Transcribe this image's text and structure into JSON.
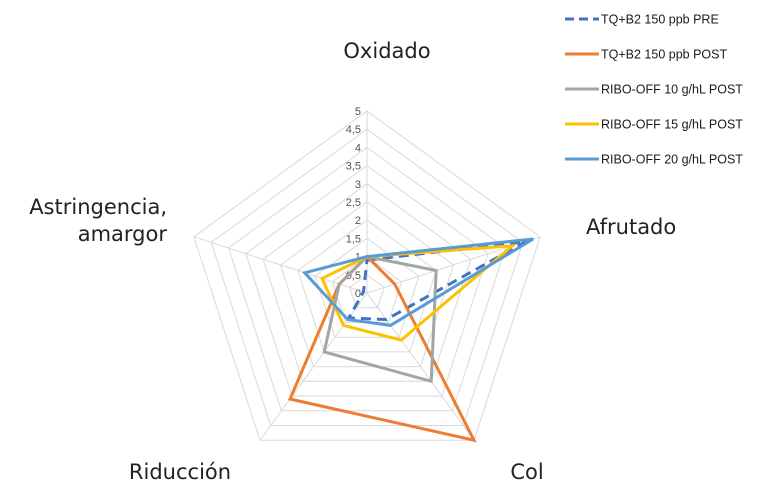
{
  "chart_data": {
    "type": "radar",
    "axes": [
      "Oxidado",
      "Afrutado",
      "Col",
      "Riducción",
      "Astringencia, amargor"
    ],
    "axis_label_lines": [
      [
        "Oxidado"
      ],
      [
        "Afrutado"
      ],
      [
        "Col"
      ],
      [
        "Riducción"
      ],
      [
        "Astringencia,",
        "amargor"
      ]
    ],
    "rlim": [
      0,
      5
    ],
    "ticks": [
      "0",
      "0,5",
      "1",
      "1,5",
      "2",
      "2,5",
      "3",
      "3,5",
      "4",
      "4,5",
      "5"
    ],
    "grid": true,
    "legend_position": "top-right",
    "series": [
      {
        "name": "TQ+B2 150 ppb PRE",
        "color": "#4472C4",
        "dashed": true,
        "values": [
          0.9,
          4.6,
          0.9,
          0.85,
          0.1
        ]
      },
      {
        "name": "TQ+B2 150 ppb POST",
        "color": "#ED7D31",
        "dashed": false,
        "values": [
          1.0,
          0.8,
          5.0,
          3.6,
          0.8
        ]
      },
      {
        "name": "RIBO-OFF 10 g/hL POST",
        "color": "#A5A5A5",
        "dashed": false,
        "values": [
          1.0,
          2.0,
          3.0,
          2.0,
          0.8
        ]
      },
      {
        "name": "RIBO-OFF 15 g/hL POST",
        "color": "#FFC000",
        "dashed": false,
        "values": [
          1.0,
          4.2,
          1.6,
          1.1,
          1.3
        ]
      },
      {
        "name": "RIBO-OFF 20 g/hL POST",
        "color": "#5B9BD5",
        "dashed": false,
        "values": [
          1.0,
          4.8,
          1.1,
          0.9,
          1.8
        ]
      }
    ]
  }
}
